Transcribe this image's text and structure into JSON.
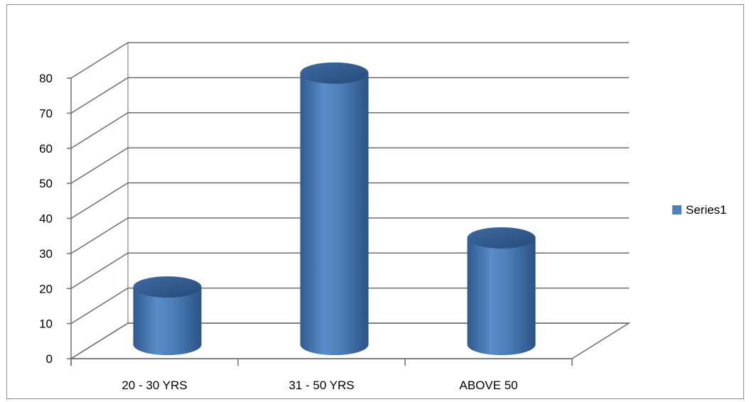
{
  "chart_data": {
    "type": "bar",
    "style": "3d-cylinder",
    "categories": [
      "20 - 30 YRS",
      "31 - 50 YRS",
      "ABOVE 50"
    ],
    "series": [
      {
        "name": "Series1",
        "values": [
          17,
          78,
          31
        ],
        "color": "#4f81bd"
      }
    ],
    "ylim": [
      0,
      80
    ],
    "yticks": [
      0,
      10,
      20,
      30,
      40,
      50,
      60,
      70,
      80
    ],
    "grid": true,
    "legend": "right"
  }
}
